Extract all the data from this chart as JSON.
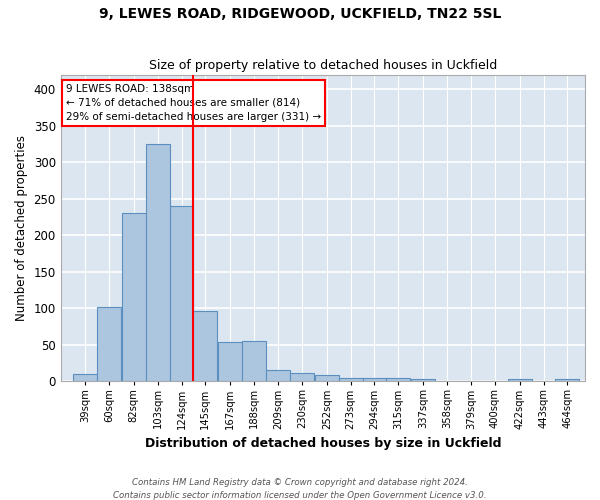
{
  "title1": "9, LEWES ROAD, RIDGEWOOD, UCKFIELD, TN22 5SL",
  "title2": "Size of property relative to detached houses in Uckfield",
  "xlabel": "Distribution of detached houses by size in Uckfield",
  "ylabel": "Number of detached properties",
  "footnote1": "Contains HM Land Registry data © Crown copyright and database right 2024.",
  "footnote2": "Contains public sector information licensed under the Open Government Licence v3.0.",
  "annotation_line1": "9 LEWES ROAD: 138sqm",
  "annotation_line2": "← 71% of detached houses are smaller (814)",
  "annotation_line3": "29% of semi-detached houses are larger (331) →",
  "bar_color": "#adc6e0",
  "bar_edge_color": "#5a8fc0",
  "bg_color": "#dce6f0",
  "grid_color": "#ffffff",
  "fig_bg": "#ffffff",
  "property_line_x": 138,
  "categories": [
    "39sqm",
    "60sqm",
    "82sqm",
    "103sqm",
    "124sqm",
    "145sqm",
    "167sqm",
    "188sqm",
    "209sqm",
    "230sqm",
    "252sqm",
    "273sqm",
    "294sqm",
    "315sqm",
    "337sqm",
    "358sqm",
    "379sqm",
    "400sqm",
    "422sqm",
    "443sqm",
    "464sqm"
  ],
  "bin_edges": [
    39,
    60,
    82,
    103,
    124,
    145,
    167,
    188,
    209,
    230,
    252,
    273,
    294,
    315,
    337,
    358,
    379,
    400,
    422,
    443,
    464
  ],
  "bin_width": 21,
  "values": [
    10,
    102,
    230,
    325,
    240,
    96,
    54,
    55,
    15,
    12,
    9,
    5,
    4,
    4,
    3,
    0,
    0,
    0,
    3,
    0,
    3
  ],
  "ylim": [
    0,
    420
  ],
  "xlim": [
    28,
    490
  ],
  "yticks": [
    0,
    50,
    100,
    150,
    200,
    250,
    300,
    350,
    400
  ]
}
